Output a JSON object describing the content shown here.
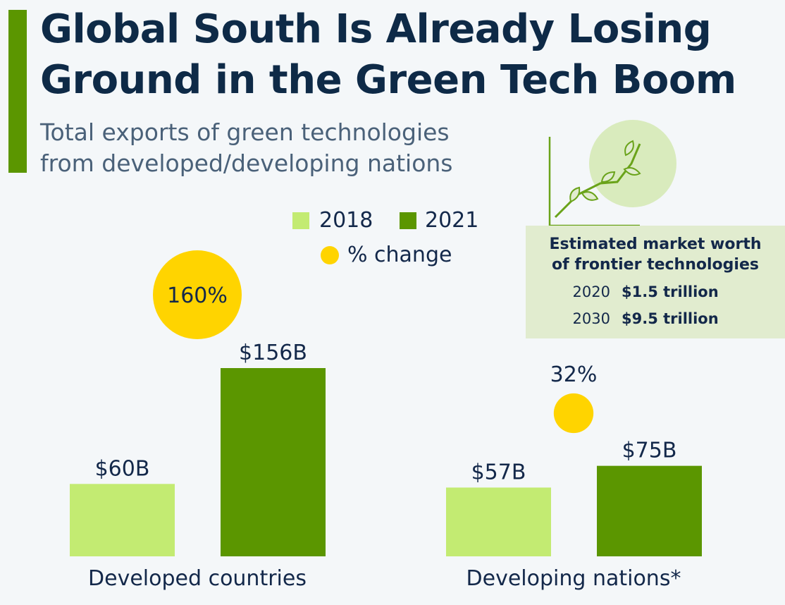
{
  "header": {
    "title_line1": "Global South Is Already Losing",
    "title_line2": "Ground in the Green Tech Boom",
    "subtitle_line1": "Total exports of green technologies",
    "subtitle_line2": "from developed/developing nations"
  },
  "legend": {
    "series1": "2018",
    "series2": "2021",
    "change": "% change"
  },
  "colors": {
    "accent": "#5b9600",
    "series_2018": "#c3eb72",
    "series_2021": "#5b9600",
    "change_dot": "#ffd400",
    "panel_bg": "#e1eccf",
    "plant_circle": "#d9ebbd"
  },
  "icons": {
    "illustration": "plant-growth-chart-icon"
  },
  "market_panel": {
    "title_line1": "Estimated market worth",
    "title_line2": "of frontier technologies",
    "rows": [
      {
        "year": "2020",
        "value": "$1.5 trillion"
      },
      {
        "year": "2030",
        "value": "$9.5 trillion"
      }
    ]
  },
  "chart_data": {
    "type": "bar",
    "title": "Total exports of green technologies from developed/developing nations",
    "categories": [
      "Developed countries",
      "Developing nations*"
    ],
    "series": [
      {
        "name": "2018",
        "values": [
          60,
          57
        ],
        "labels": [
          "$60B",
          "$57B"
        ]
      },
      {
        "name": "2021",
        "values": [
          156,
          75
        ],
        "labels": [
          "$156B",
          "$75B"
        ]
      }
    ],
    "pct_change": [
      160,
      32
    ],
    "pct_change_labels": [
      "160%",
      "32%"
    ],
    "unit": "$B",
    "ylim": [
      0,
      156
    ],
    "grid": false,
    "legend_position": "top-center"
  }
}
